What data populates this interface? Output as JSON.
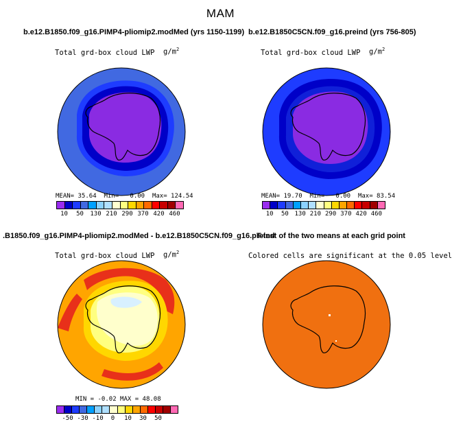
{
  "page": {
    "title": "MAM"
  },
  "panels": [
    {
      "title": "b.e12.B1850.f09_g16.PIMP4-pliomip2.modMed (yrs 1150-1199)",
      "variable_label": "Total grd-box cloud LWP",
      "units_base": "g/m",
      "units_exp": "2",
      "stats": {
        "mean_label": "MEAN=",
        "mean": "35.64",
        "min_label": "Min=",
        "min": "0.00",
        "max_label": "Max=",
        "max": "124.54"
      }
    },
    {
      "title": "b.e12.B1850C5CN.f09_g16.preind (yrs 756-805)",
      "variable_label": "Total grd-box cloud LWP",
      "units_base": "g/m",
      "units_exp": "2",
      "stats": {
        "mean_label": "MEAN=",
        "mean": "19.70",
        "min_label": "Min=",
        "min": "0.00",
        "max_label": "Max=",
        "max": "83.54"
      }
    },
    {
      "title": ".B1850.f09_g16.PIMP4-pliomip2.modMed - b.e12.B1850C5CN.f09_g16.preind",
      "variable_label": "Total grd-box cloud LWP",
      "units_base": "g/m",
      "units_exp": "2",
      "stats": {
        "min_label": "MIN =",
        "min": "-0.02",
        "max_label": "MAX =",
        "max": "48.08"
      }
    },
    {
      "title": "T-test of the two means at each grid point",
      "variable_label": "Colored cells are significant at the 0.05 level"
    }
  ],
  "chart_data": [
    {
      "type": "heatmap",
      "projection": "south-polar-stereographic",
      "region": "Antarctica / Southern Ocean",
      "colorbar": {
        "labels": [
          "10",
          "50",
          "130",
          "210",
          "290",
          "370",
          "420",
          "460"
        ],
        "colors": [
          "#9a2cf0",
          "#0000c8",
          "#1e3cff",
          "#4169e1",
          "#00a0ff",
          "#8cd2ff",
          "#b0e0ff",
          "#ffffd0",
          "#ffff80",
          "#ffd700",
          "#ffa500",
          "#ff6a00",
          "#ff0000",
          "#c80000",
          "#a00000",
          "#ff69b4"
        ]
      },
      "field_description": [
        {
          "zone": "interior",
          "approx_value": 10,
          "color": "#8a2be2"
        },
        {
          "zone": "inner-ring",
          "approx_value": 30,
          "color": "#0000c8"
        },
        {
          "zone": "outer-ocean",
          "approx_value": 50,
          "color": "#4169e1"
        }
      ]
    },
    {
      "type": "heatmap",
      "projection": "south-polar-stereographic",
      "region": "Antarctica / Southern Ocean",
      "colorbar": {
        "labels": [
          "10",
          "50",
          "130",
          "210",
          "290",
          "370",
          "420",
          "460"
        ],
        "colors": [
          "#9a2cf0",
          "#0000c8",
          "#1e3cff",
          "#4169e1",
          "#00a0ff",
          "#8cd2ff",
          "#b0e0ff",
          "#ffffd0",
          "#ffff80",
          "#ffd700",
          "#ffa500",
          "#ff6a00",
          "#ff0000",
          "#c80000",
          "#a00000",
          "#ff69b4"
        ]
      },
      "field_description": [
        {
          "zone": "interior",
          "approx_value": 10,
          "color": "#8a2be2"
        },
        {
          "zone": "inner-ring",
          "approx_value": 30,
          "color": "#0000c8"
        },
        {
          "zone": "outer-ocean",
          "approx_value": 30,
          "color": "#1e3cff"
        }
      ]
    },
    {
      "type": "heatmap",
      "projection": "south-polar-stereographic",
      "region": "Antarctica / Southern Ocean",
      "colorbar": {
        "labels": [
          "-50",
          "-30",
          "-10",
          "0",
          "10",
          "30",
          "50"
        ],
        "colors": [
          "#9a2cf0",
          "#0000c8",
          "#1e3cff",
          "#4169e1",
          "#00a0ff",
          "#8cd2ff",
          "#b0e0ff",
          "#ffffd0",
          "#ffff80",
          "#ffd700",
          "#ffa500",
          "#ff6a00",
          "#ff0000",
          "#c80000",
          "#a00000",
          "#ff69b4"
        ]
      },
      "field_description": [
        {
          "zone": "interior",
          "approx_value": 0,
          "color": "#ffffcc"
        },
        {
          "zone": "coastal-ring",
          "approx_value": 10,
          "color": "#ffd700"
        },
        {
          "zone": "ocean",
          "approx_value": 20,
          "color": "#ffa500"
        },
        {
          "zone": "storm-track-band",
          "approx_value": 40,
          "color": "#e8301a"
        }
      ]
    },
    {
      "type": "heatmap",
      "projection": "south-polar-stereographic",
      "region": "Antarctica / Southern Ocean",
      "significance_level": 0.05,
      "field_description": [
        {
          "zone": "all",
          "significant": true,
          "color": "#f07010"
        }
      ]
    }
  ]
}
